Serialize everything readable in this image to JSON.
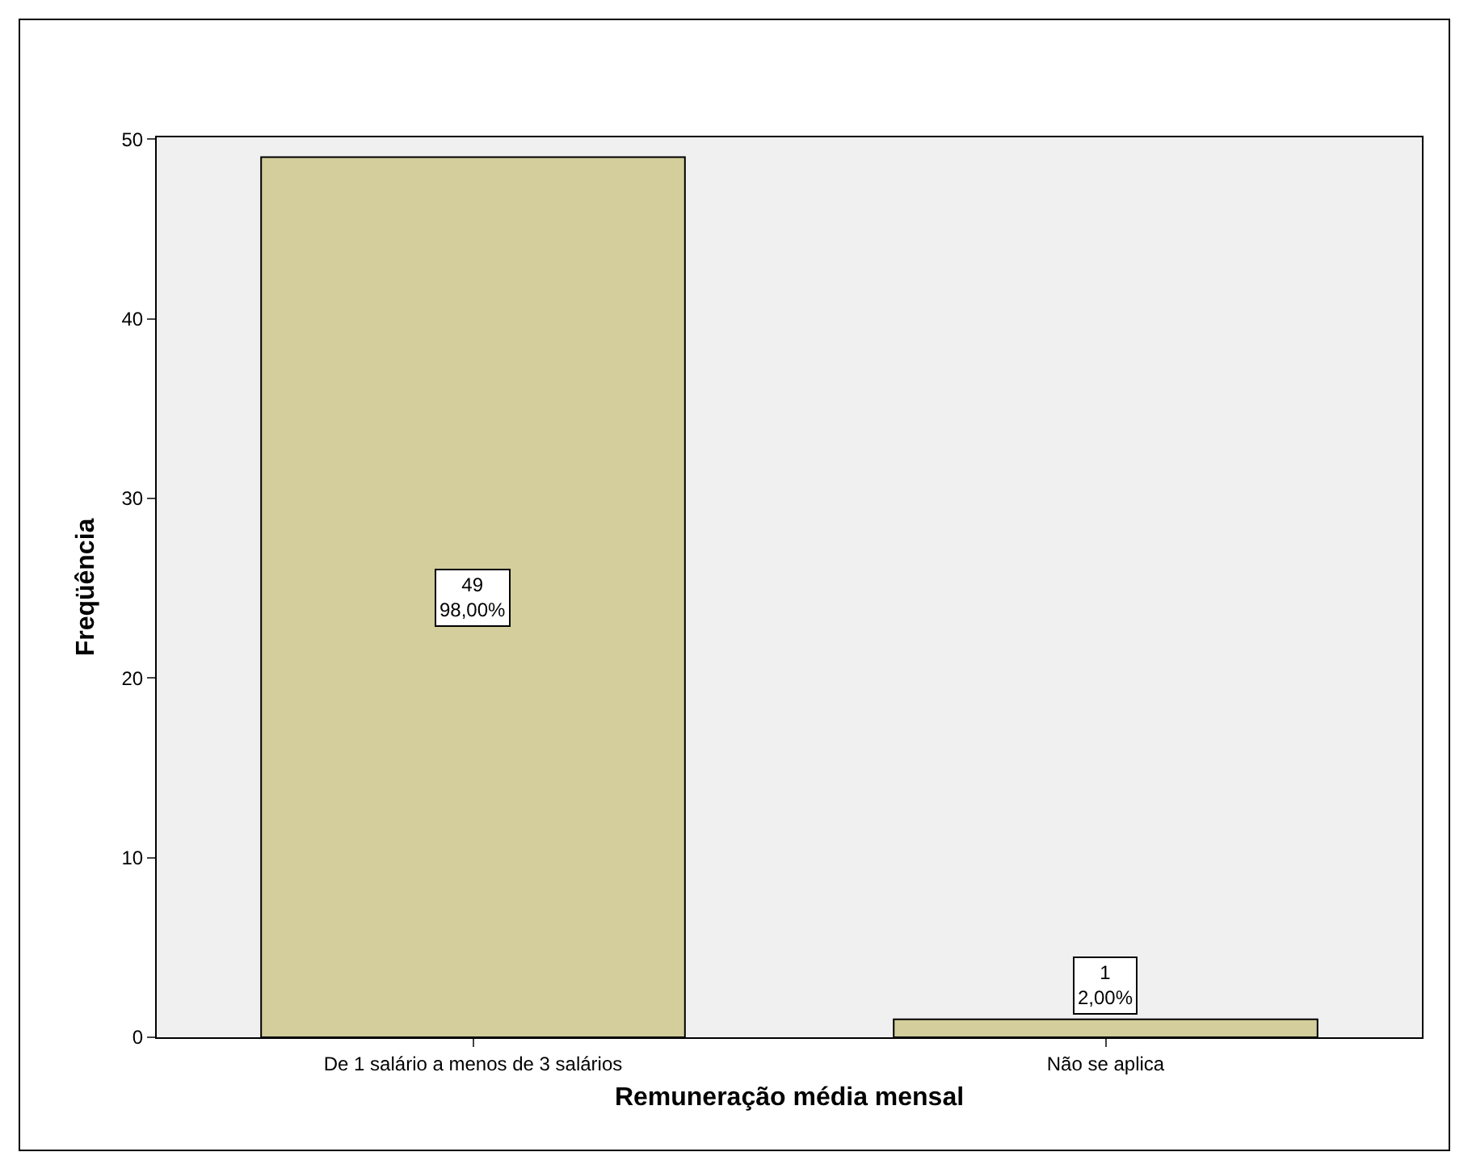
{
  "chart_data": {
    "type": "bar",
    "xlabel": "Remuneração média mensal",
    "ylabel": "Freqüência",
    "categories": [
      "De 1 salário a menos de 3 salários",
      "Não se aplica"
    ],
    "values": [
      49,
      1
    ],
    "color": "#d3ce9b",
    "value_labels": [
      "49\n98,00%",
      "1\n2,00%"
    ],
    "ylim": [
      0,
      50.1
    ],
    "yticks": [
      0,
      10,
      20,
      30,
      40,
      50
    ],
    "grid": false
  }
}
